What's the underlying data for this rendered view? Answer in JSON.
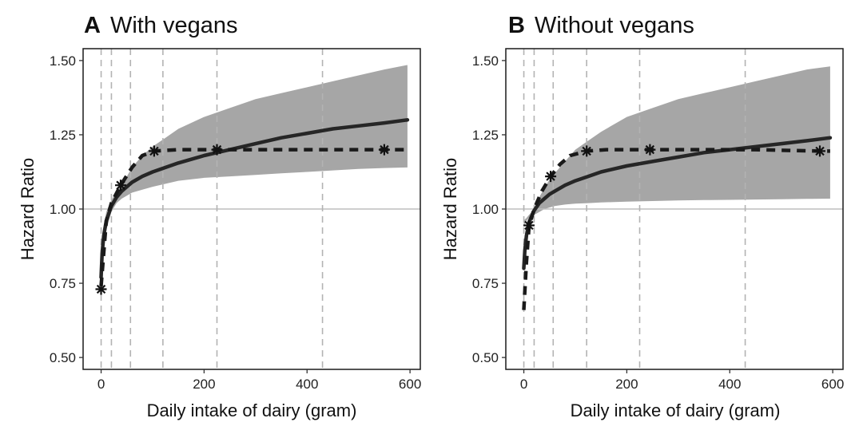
{
  "chart_data": [
    {
      "type": "line",
      "panel_letter": "A",
      "title": "With vegans",
      "xlabel": "Daily intake of dairy (gram)",
      "ylabel": "Hazard Ratio",
      "xlim": [
        -35,
        620
      ],
      "ylim": [
        0.46,
        1.54
      ],
      "x_ticks": [
        0,
        200,
        400,
        600
      ],
      "x_tick_labels": [
        "0",
        "200",
        "400",
        "600"
      ],
      "y_ticks": [
        0.5,
        0.75,
        1.0,
        1.25,
        1.5
      ],
      "y_tick_labels": [
        "0.50",
        "0.75",
        "1.00",
        "1.25",
        "1.50"
      ],
      "reference_line_y": 1.0,
      "vertical_dashed_x": [
        0,
        20,
        57,
        120,
        225,
        430
      ],
      "spline_x": [
        0,
        2,
        5,
        10,
        20,
        30,
        40,
        50,
        60,
        80,
        100,
        125,
        150,
        200,
        250,
        300,
        350,
        400,
        450,
        500,
        550,
        595
      ],
      "spline_y": [
        0.77,
        0.85,
        0.91,
        0.96,
        1.01,
        1.04,
        1.06,
        1.075,
        1.09,
        1.11,
        1.125,
        1.14,
        1.155,
        1.18,
        1.2,
        1.22,
        1.24,
        1.255,
        1.27,
        1.28,
        1.29,
        1.3
      ],
      "ci_upper": [
        0.8,
        0.88,
        0.94,
        0.99,
        1.03,
        1.06,
        1.09,
        1.11,
        1.14,
        1.18,
        1.21,
        1.24,
        1.27,
        1.31,
        1.34,
        1.37,
        1.39,
        1.41,
        1.43,
        1.45,
        1.47,
        1.485
      ],
      "ci_lower": [
        0.75,
        0.82,
        0.88,
        0.93,
        0.99,
        1.02,
        1.035,
        1.045,
        1.055,
        1.065,
        1.075,
        1.085,
        1.095,
        1.105,
        1.11,
        1.115,
        1.12,
        1.125,
        1.13,
        1.135,
        1.138,
        1.14
      ],
      "step_x": [
        0,
        10,
        20,
        38,
        60,
        80,
        103,
        150,
        225,
        300,
        400,
        550,
        595
      ],
      "step_y": [
        0.74,
        0.96,
        1.02,
        1.08,
        1.14,
        1.18,
        1.195,
        1.2,
        1.2,
        1.2,
        1.2,
        1.2,
        1.2
      ],
      "point_x": [
        0,
        38,
        103,
        225,
        550
      ],
      "point_y": [
        0.73,
        1.08,
        1.195,
        1.2,
        1.2
      ]
    },
    {
      "type": "line",
      "panel_letter": "B",
      "title": "Without vegans",
      "xlabel": "Daily intake of dairy (gram)",
      "ylabel": "Hazard Ratio",
      "xlim": [
        -35,
        620
      ],
      "ylim": [
        0.46,
        1.54
      ],
      "x_ticks": [
        0,
        200,
        400,
        600
      ],
      "x_tick_labels": [
        "0",
        "200",
        "400",
        "600"
      ],
      "y_ticks": [
        0.5,
        0.75,
        1.0,
        1.25,
        1.5
      ],
      "y_tick_labels": [
        "0.50",
        "0.75",
        "1.00",
        "1.25",
        "1.50"
      ],
      "reference_line_y": 1.0,
      "vertical_dashed_x": [
        0,
        20,
        57,
        122,
        225,
        430
      ],
      "spline_x": [
        0,
        2,
        5,
        10,
        20,
        30,
        40,
        50,
        60,
        80,
        100,
        125,
        150,
        200,
        250,
        300,
        350,
        400,
        450,
        500,
        550,
        595
      ],
      "spline_y": [
        0.8,
        0.86,
        0.91,
        0.955,
        0.995,
        1.02,
        1.035,
        1.05,
        1.06,
        1.08,
        1.095,
        1.11,
        1.125,
        1.145,
        1.16,
        1.175,
        1.19,
        1.2,
        1.21,
        1.22,
        1.23,
        1.24
      ],
      "ci_upper": [
        0.96,
        0.965,
        0.97,
        0.98,
        1.0,
        1.04,
        1.07,
        1.1,
        1.12,
        1.16,
        1.2,
        1.23,
        1.26,
        1.31,
        1.34,
        1.37,
        1.39,
        1.41,
        1.43,
        1.45,
        1.47,
        1.48
      ],
      "ci_lower": [
        0.94,
        0.95,
        0.96,
        0.97,
        0.98,
        0.99,
        1.0,
        1.005,
        1.01,
        1.015,
        1.018,
        1.02,
        1.022,
        1.025,
        1.027,
        1.029,
        1.03,
        1.031,
        1.032,
        1.033,
        1.034,
        1.035
      ],
      "step_x": [
        0,
        5,
        10,
        20,
        35,
        52,
        70,
        90,
        122,
        160,
        245,
        350,
        450,
        575,
        595
      ],
      "step_y": [
        0.66,
        0.82,
        0.94,
        1.0,
        1.06,
        1.11,
        1.15,
        1.18,
        1.195,
        1.2,
        1.2,
        1.2,
        1.2,
        1.195,
        1.195
      ],
      "point_x": [
        10,
        52,
        122,
        245,
        575
      ],
      "point_y": [
        0.945,
        1.11,
        1.195,
        1.2,
        1.195
      ]
    }
  ]
}
